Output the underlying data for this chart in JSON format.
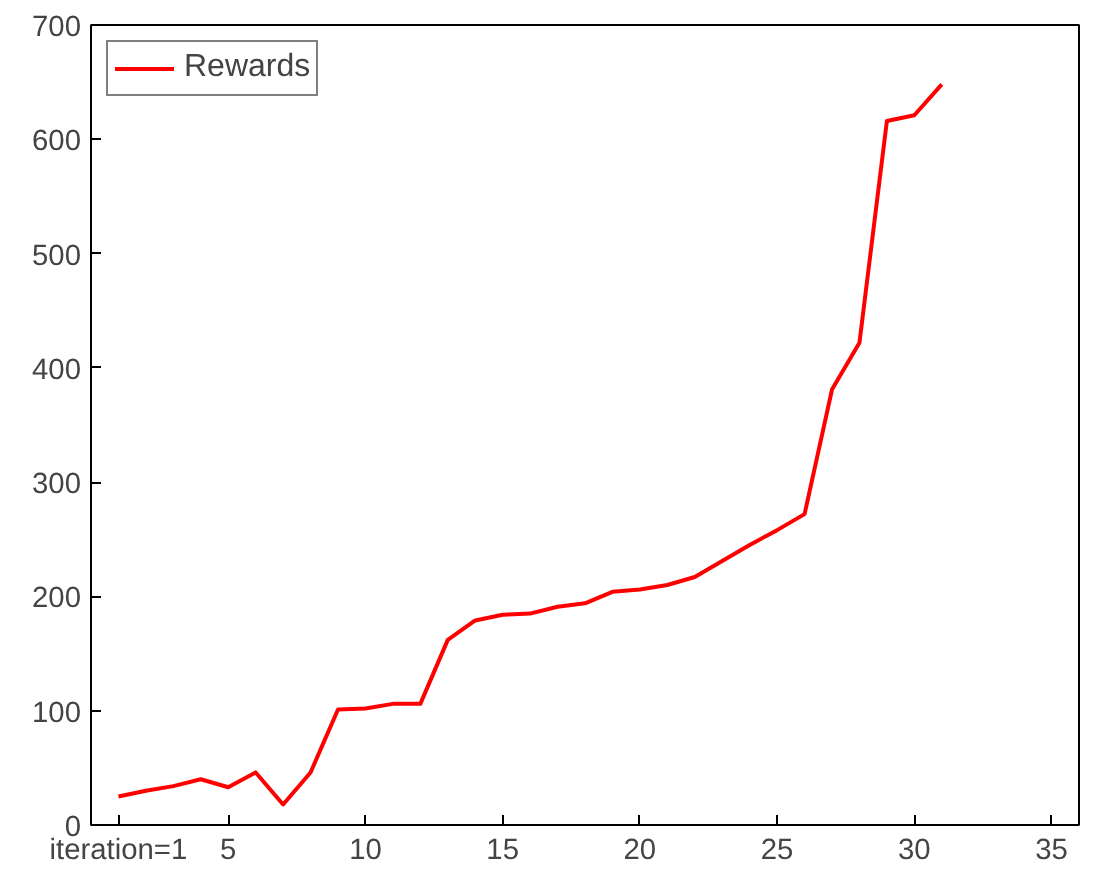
{
  "chart_data": {
    "type": "line",
    "x": [
      1,
      2,
      3,
      4,
      5,
      6,
      7,
      8,
      9,
      10,
      11,
      12,
      13,
      14,
      15,
      16,
      17,
      18,
      19,
      20,
      21,
      22,
      23,
      24,
      25,
      26,
      27,
      28,
      29,
      30,
      31
    ],
    "series": [
      {
        "name": "Rewards",
        "color": "#ff0000",
        "values": [
          25,
          30,
          34,
          40,
          33,
          46,
          18,
          46,
          101,
          102,
          106,
          106,
          162,
          179,
          184,
          185,
          191,
          194,
          204,
          206,
          210,
          217,
          231,
          245,
          258,
          272,
          381,
          422,
          616,
          621,
          648
        ]
      }
    ],
    "xlim": [
      0,
      36
    ],
    "xticks": [
      {
        "value": 1,
        "label": "iteration=1"
      },
      5,
      10,
      15,
      20,
      25,
      30,
      35
    ],
    "ylim": [
      0,
      700
    ],
    "yticks": [
      0,
      100,
      200,
      300,
      400,
      500,
      600,
      700
    ],
    "grid": false,
    "legend": "top left",
    "marker": "none",
    "line_style": "solid"
  }
}
